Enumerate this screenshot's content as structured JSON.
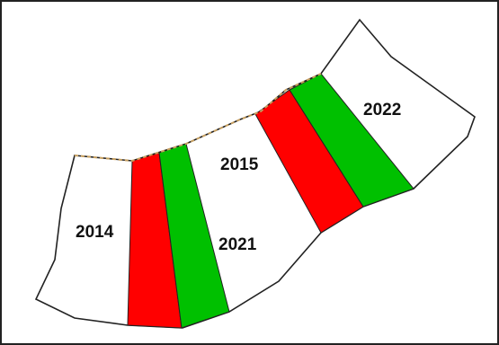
{
  "colors": {
    "red": "#ff0000",
    "green": "#00c000",
    "white": "#ffffff",
    "outline": "#222222",
    "dashed_edge": "#c8a060"
  },
  "labels": {
    "year_2014": "2014",
    "year_2015": "2015",
    "year_2021": "2021",
    "year_2022": "2022"
  }
}
